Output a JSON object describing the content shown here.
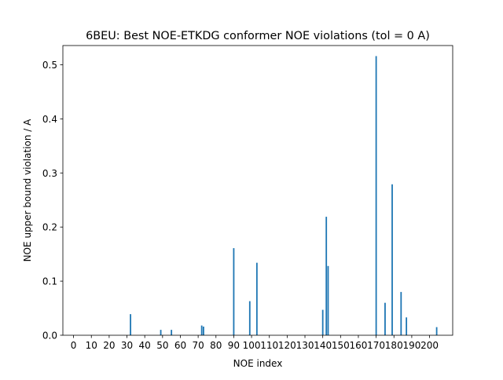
{
  "chart_data": {
    "type": "bar",
    "title": "6BEU: Best NOE-ETKDG conformer NOE violations (tol = 0 A)",
    "xlabel": "NOE index",
    "ylabel": "NOE upper bound violation / A",
    "xlim": [
      -6,
      213
    ],
    "ylim": [
      0,
      0.5355
    ],
    "xticks": [
      0,
      10,
      20,
      30,
      40,
      50,
      60,
      70,
      80,
      90,
      100,
      110,
      120,
      130,
      140,
      150,
      160,
      170,
      180,
      190,
      200
    ],
    "yticks": [
      0.0,
      0.1,
      0.2,
      0.3,
      0.4,
      0.5
    ],
    "bar_width": 0.8,
    "grid": false,
    "color": "#1f77b4",
    "x": [
      32,
      49,
      55,
      72,
      73,
      90,
      99,
      103,
      140,
      142,
      143,
      170,
      175,
      179,
      184,
      187,
      204
    ],
    "values": [
      0.039,
      0.01,
      0.01,
      0.018,
      0.016,
      0.161,
      0.063,
      0.134,
      0.047,
      0.219,
      0.128,
      0.516,
      0.06,
      0.279,
      0.08,
      0.033,
      0.015
    ]
  }
}
